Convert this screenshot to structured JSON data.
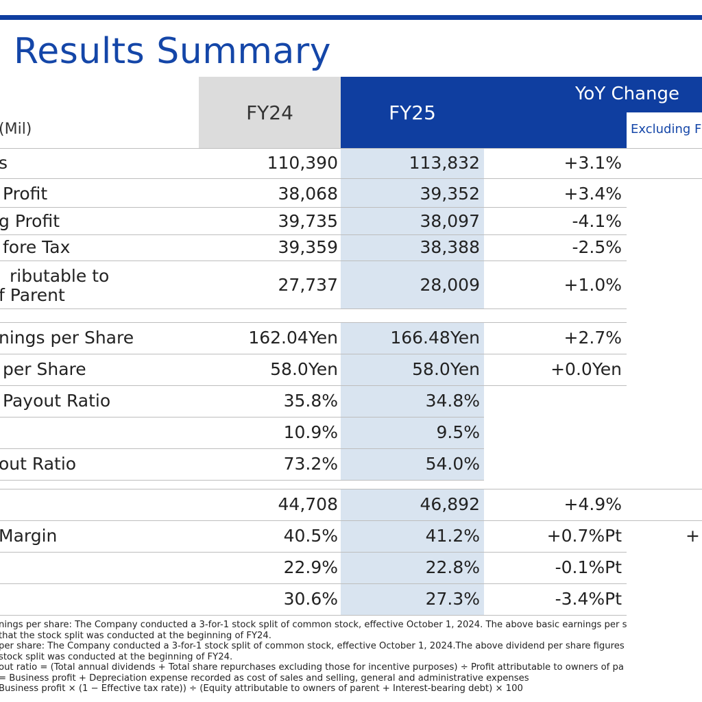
{
  "title": "l Results Summary",
  "header": {
    "unit": "Mil)",
    "fy24": "FY24",
    "fy25": "FY25",
    "yoy": "YoY Change",
    "excluding": "Excluding F"
  },
  "rows": [
    {
      "label": "s",
      "fy24": "110,390",
      "fy25": "113,832",
      "yoy": "+3.1%",
      "excl": ""
    },
    {
      "label": "Profit",
      "fy24": "38,068",
      "fy25": "39,352",
      "yoy": "+3.4%",
      "excl": ""
    },
    {
      "label": "g Profit",
      "fy24": "39,735",
      "fy25": "38,097",
      "yoy": "-4.1%",
      "excl": ""
    },
    {
      "label": "fore Tax",
      "fy24": "39,359",
      "fy25": "38,388",
      "yoy": "-2.5%",
      "excl": ""
    },
    {
      "label": "ributable to",
      "label2": "f Parent",
      "fy24": "27,737",
      "fy25": "28,009",
      "yoy": "+1.0%",
      "excl": ""
    },
    {
      "label": "nings per Share",
      "fy24": "162.04Yen",
      "fy25": "166.48Yen",
      "yoy": "+2.7%",
      "excl": ""
    },
    {
      "label": "per Share",
      "fy24": "58.0Yen",
      "fy25": "58.0Yen",
      "yoy": "+0.0Yen",
      "excl": ""
    },
    {
      "label": "Payout Ratio",
      "fy24": "35.8%",
      "fy25": "34.8%",
      "yoy": "",
      "excl": ""
    },
    {
      "label": "",
      "fy24": "10.9%",
      "fy25": "9.5%",
      "yoy": "",
      "excl": ""
    },
    {
      "label": "out Ratio",
      "fy24": "73.2%",
      "fy25": "54.0%",
      "yoy": "",
      "excl": ""
    },
    {
      "label": "",
      "fy24": "44,708",
      "fy25": "46,892",
      "yoy": "+4.9%",
      "excl": ""
    },
    {
      "label": "Margin",
      "fy24": "40.5%",
      "fy25": "41.2%",
      "yoy": "+0.7%Pt",
      "excl": "+"
    },
    {
      "label": "",
      "fy24": "22.9%",
      "fy25": "22.8%",
      "yoy": "-0.1%Pt",
      "excl": ""
    },
    {
      "label": "",
      "fy24": "30.6%",
      "fy25": "27.3%",
      "yoy": "-3.4%Pt",
      "excl": ""
    }
  ],
  "notes": [
    "nings per share: The Company conducted a 3-for-1 stock split of common stock, effective October 1, 2024. The above basic earnings per s",
    "that the stock split was conducted at the beginning of FY24.",
    " per share: The Company conducted a 3-for-1 stock split of common stock, effective October 1, 2024.The above dividend per share figures",
    "stock split was conducted at the beginning of FY24.",
    "out ratio = (Total annual dividends + Total share repurchases excluding those for incentive purposes) ÷ Profit attributable to owners of pa",
    "= Business profit + Depreciation expense recorded as cost of sales and selling, general and administrative expenses",
    "Business profit × (1 − Effective tax rate)) ÷ (Equity attributable to owners of parent + Interest-bearing debt) × 100"
  ]
}
